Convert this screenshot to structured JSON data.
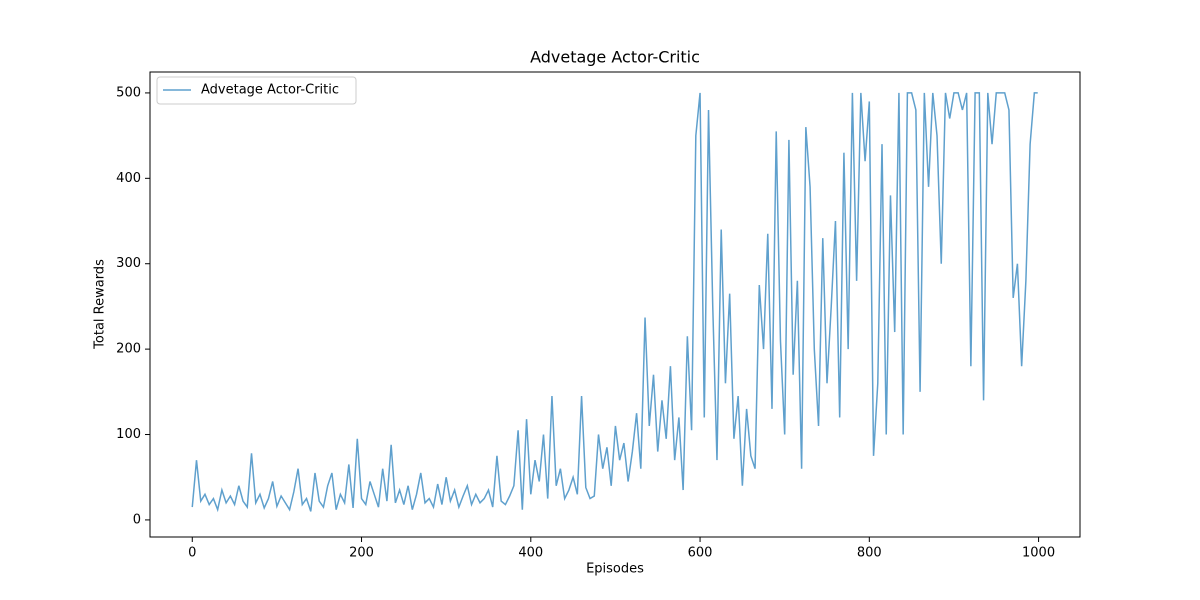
{
  "chart_data": {
    "type": "line",
    "title": "Advetage Actor-Critic",
    "x_label": "Episodes",
    "y_label": "Total Rewards",
    "x": [
      0,
      5,
      10,
      15,
      20,
      25,
      30,
      35,
      40,
      45,
      50,
      55,
      60,
      65,
      70,
      75,
      80,
      85,
      90,
      95,
      100,
      105,
      110,
      115,
      120,
      125,
      130,
      135,
      140,
      145,
      150,
      155,
      160,
      165,
      170,
      175,
      180,
      185,
      190,
      195,
      200,
      205,
      210,
      215,
      220,
      225,
      230,
      235,
      240,
      245,
      250,
      255,
      260,
      265,
      270,
      275,
      280,
      285,
      290,
      295,
      300,
      305,
      310,
      315,
      320,
      325,
      330,
      335,
      340,
      345,
      350,
      355,
      360,
      365,
      370,
      375,
      380,
      385,
      390,
      395,
      400,
      405,
      410,
      415,
      420,
      425,
      430,
      435,
      440,
      445,
      450,
      455,
      460,
      465,
      470,
      475,
      480,
      485,
      490,
      495,
      500,
      505,
      510,
      515,
      520,
      525,
      530,
      535,
      540,
      545,
      550,
      555,
      560,
      565,
      570,
      575,
      580,
      585,
      590,
      595,
      600,
      605,
      610,
      615,
      620,
      625,
      630,
      635,
      640,
      645,
      650,
      655,
      660,
      665,
      670,
      675,
      680,
      685,
      690,
      695,
      700,
      705,
      710,
      715,
      720,
      725,
      730,
      735,
      740,
      745,
      750,
      755,
      760,
      765,
      770,
      775,
      780,
      785,
      790,
      795,
      800,
      805,
      810,
      815,
      820,
      825,
      830,
      835,
      840,
      845,
      850,
      855,
      860,
      865,
      870,
      875,
      880,
      885,
      890,
      895,
      900,
      905,
      910,
      915,
      920,
      925,
      930,
      935,
      940,
      945,
      950,
      955,
      960,
      965,
      970,
      975,
      980,
      985,
      990,
      995,
      999
    ],
    "series": [
      {
        "name": "Advetage Actor-Critic",
        "color": "#5fa0cd",
        "values": [
          15,
          70,
          22,
          30,
          18,
          25,
          12,
          35,
          20,
          28,
          18,
          40,
          22,
          15,
          78,
          20,
          30,
          14,
          25,
          45,
          16,
          28,
          20,
          12,
          33,
          60,
          18,
          25,
          10,
          55,
          22,
          15,
          40,
          55,
          12,
          30,
          20,
          65,
          14,
          95,
          25,
          18,
          45,
          30,
          15,
          60,
          22,
          88,
          20,
          35,
          18,
          40,
          12,
          30,
          55,
          20,
          25,
          15,
          42,
          18,
          50,
          22,
          35,
          15,
          28,
          40,
          18,
          30,
          20,
          25,
          35,
          15,
          75,
          22,
          18,
          28,
          40,
          105,
          12,
          118,
          30,
          70,
          45,
          100,
          25,
          145,
          40,
          60,
          25,
          35,
          50,
          30,
          145,
          38,
          25,
          28,
          100,
          60,
          85,
          40,
          110,
          70,
          90,
          45,
          80,
          125,
          60,
          237,
          110,
          170,
          80,
          140,
          95,
          180,
          70,
          120,
          35,
          215,
          105,
          450,
          500,
          120,
          480,
          250,
          70,
          340,
          160,
          265,
          95,
          145,
          40,
          130,
          75,
          60,
          275,
          200,
          335,
          130,
          455,
          210,
          100,
          445,
          170,
          280,
          60,
          460,
          390,
          200,
          110,
          330,
          160,
          250,
          350,
          120,
          430,
          200,
          500,
          280,
          500,
          420,
          490,
          75,
          160,
          440,
          100,
          380,
          220,
          500,
          100,
          500,
          500,
          480,
          150,
          500,
          390,
          500,
          450,
          300,
          500,
          470,
          500,
          500,
          480,
          500,
          180,
          500,
          500,
          140,
          500,
          440,
          500,
          500,
          500,
          480,
          260,
          300,
          180,
          280,
          440,
          500,
          500
        ]
      }
    ],
    "xlim": [
      -49.95,
      1048.95
    ],
    "ylim": [
      -20,
      524.5
    ],
    "xticks": [
      0,
      200,
      400,
      600,
      800,
      1000
    ],
    "yticks": [
      0,
      100,
      200,
      300,
      400,
      500
    ],
    "legend": "upper left"
  }
}
